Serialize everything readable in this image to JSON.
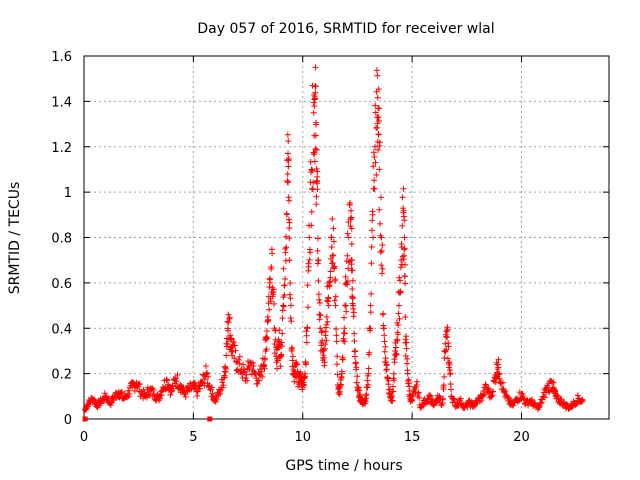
{
  "chart_data": {
    "type": "scatter",
    "title": "Day 057 of 2016, SRMTID for receiver wlal",
    "xlabel": "GPS time / hours",
    "ylabel": "SRMTID / TECUs",
    "xlim": [
      0,
      24
    ],
    "ylim": [
      0,
      1.6
    ],
    "xticks": [
      0,
      5,
      10,
      15,
      20
    ],
    "xtick_labels": [
      "0",
      "5",
      "10",
      "15",
      "20"
    ],
    "yticks": [
      0,
      0.2,
      0.4,
      0.6,
      0.8,
      1.0,
      1.2,
      1.4,
      1.6
    ],
    "ytick_labels": [
      "0",
      "0.2",
      "0.4",
      "0.6",
      "0.8",
      "1",
      "1.2",
      "1.4",
      "1.6"
    ],
    "grid": true,
    "marker": "+",
    "color": "#ff0000",
    "series": [
      {
        "name": "SRMTID",
        "x": [
          0.05,
          0.2,
          0.4,
          0.6,
          0.8,
          1.0,
          1.2,
          1.4,
          1.6,
          1.8,
          2.0,
          2.2,
          2.4,
          2.6,
          2.8,
          3.0,
          3.2,
          3.4,
          3.6,
          3.8,
          4.0,
          4.2,
          4.4,
          4.6,
          4.8,
          5.0,
          5.2,
          5.4,
          5.6,
          5.8,
          6.0,
          6.2,
          6.4,
          6.5,
          6.6,
          6.7,
          6.8,
          7.0,
          7.2,
          7.4,
          7.6,
          7.8,
          8.0,
          8.2,
          8.3,
          8.4,
          8.5,
          8.6,
          8.7,
          8.8,
          8.9,
          9.0,
          9.1,
          9.2,
          9.3,
          9.35,
          9.4,
          9.5,
          9.6,
          9.7,
          9.8,
          9.9,
          10.0,
          10.1,
          10.2,
          10.3,
          10.4,
          10.5,
          10.55,
          10.6,
          10.65,
          10.7,
          10.8,
          10.9,
          11.0,
          11.1,
          11.2,
          11.3,
          11.4,
          11.5,
          11.6,
          11.7,
          11.8,
          11.9,
          12.0,
          12.1,
          12.2,
          12.25,
          12.3,
          12.4,
          12.5,
          12.6,
          12.7,
          12.8,
          12.9,
          13.0,
          13.1,
          13.2,
          13.3,
          13.4,
          13.45,
          13.5,
          13.6,
          13.7,
          13.8,
          13.9,
          14.0,
          14.1,
          14.2,
          14.3,
          14.4,
          14.5,
          14.6,
          14.65,
          14.7,
          14.8,
          14.9,
          15.0,
          15.2,
          15.4,
          15.6,
          15.8,
          16.0,
          16.2,
          16.4,
          16.5,
          16.6,
          16.7,
          16.8,
          17.0,
          17.2,
          17.4,
          17.6,
          17.8,
          18.0,
          18.2,
          18.4,
          18.6,
          18.8,
          18.9,
          19.0,
          19.2,
          19.4,
          19.6,
          19.8,
          20.0,
          20.2,
          20.4,
          20.6,
          20.8,
          21.0,
          21.2,
          21.4,
          21.5,
          21.6,
          21.8,
          22.0,
          22.2,
          22.4,
          22.6,
          22.8
        ],
        "y": [
          0.04,
          0.07,
          0.09,
          0.06,
          0.08,
          0.1,
          0.07,
          0.1,
          0.12,
          0.09,
          0.11,
          0.14,
          0.16,
          0.12,
          0.1,
          0.13,
          0.11,
          0.09,
          0.14,
          0.17,
          0.12,
          0.18,
          0.15,
          0.11,
          0.13,
          0.14,
          0.12,
          0.16,
          0.2,
          0.13,
          0.08,
          0.12,
          0.18,
          0.28,
          0.46,
          0.35,
          0.3,
          0.25,
          0.22,
          0.18,
          0.25,
          0.2,
          0.17,
          0.24,
          0.3,
          0.45,
          0.6,
          0.73,
          0.4,
          0.25,
          0.35,
          0.28,
          0.5,
          0.75,
          1.05,
          1.14,
          0.7,
          0.3,
          0.2,
          0.25,
          0.16,
          0.18,
          0.14,
          0.2,
          0.4,
          0.8,
          1.1,
          1.35,
          1.42,
          1.25,
          1.05,
          0.7,
          0.4,
          0.3,
          0.25,
          0.45,
          0.6,
          0.8,
          0.84,
          0.5,
          0.15,
          0.12,
          0.2,
          0.4,
          0.6,
          0.8,
          0.88,
          0.7,
          0.5,
          0.3,
          0.14,
          0.1,
          0.08,
          0.07,
          0.09,
          0.2,
          0.5,
          0.9,
          1.2,
          1.33,
          1.37,
          1.1,
          0.8,
          0.4,
          0.25,
          0.18,
          0.1,
          0.08,
          0.25,
          0.35,
          0.5,
          0.7,
          0.91,
          0.8,
          0.35,
          0.2,
          0.1,
          0.08,
          0.15,
          0.05,
          0.08,
          0.1,
          0.06,
          0.09,
          0.07,
          0.3,
          0.36,
          0.25,
          0.1,
          0.06,
          0.08,
          0.05,
          0.07,
          0.06,
          0.08,
          0.1,
          0.14,
          0.1,
          0.18,
          0.24,
          0.2,
          0.12,
          0.08,
          0.06,
          0.09,
          0.11,
          0.07,
          0.08,
          0.06,
          0.05,
          0.1,
          0.14,
          0.16,
          0.12,
          0.09,
          0.08,
          0.06,
          0.05,
          0.07,
          0.09,
          0.08
        ]
      }
    ],
    "flags_at_zero": [
      0.05,
      5.75
    ]
  }
}
